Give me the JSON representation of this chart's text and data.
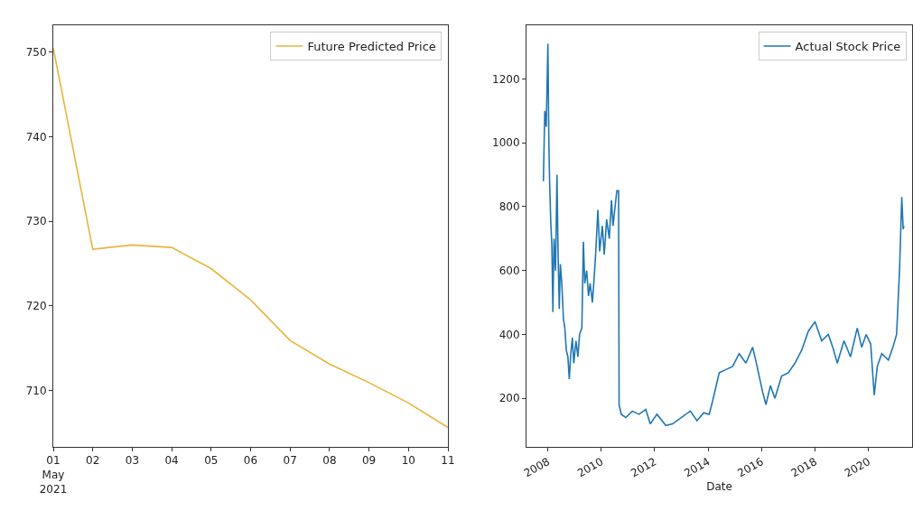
{
  "chart_data": [
    {
      "type": "line",
      "x": [
        "2021-05-01",
        "2021-05-02",
        "2021-05-03",
        "2021-05-04",
        "2021-05-05",
        "2021-05-06",
        "2021-05-07",
        "2021-05-08",
        "2021-05-09",
        "2021-05-10",
        "2021-05-11"
      ],
      "series": [
        {
          "name": "Future Predicted Price",
          "color": "#e8b53c",
          "values": [
            750.5,
            726.7,
            727.2,
            726.9,
            724.4,
            720.7,
            715.9,
            713.1,
            710.9,
            708.5,
            705.6
          ]
        }
      ],
      "xlim": [
        "2021-05-01",
        "2021-05-11"
      ],
      "xticks": [
        {
          "value": "2021-05-01",
          "label": "01\nMay\n2021"
        },
        {
          "value": "2021-05-02",
          "label": "02"
        },
        {
          "value": "2021-05-03",
          "label": "03"
        },
        {
          "value": "2021-05-04",
          "label": "04"
        },
        {
          "value": "2021-05-05",
          "label": "05"
        },
        {
          "value": "2021-05-06",
          "label": "06"
        },
        {
          "value": "2021-05-07",
          "label": "07"
        },
        {
          "value": "2021-05-08",
          "label": "08"
        },
        {
          "value": "2021-05-09",
          "label": "09"
        },
        {
          "value": "2021-05-10",
          "label": "10"
        },
        {
          "value": "2021-05-11",
          "label": "11"
        }
      ],
      "ylim": [
        703.3,
        753.2
      ],
      "yticks": [
        710,
        720,
        730,
        740,
        750
      ],
      "legend": "top right"
    },
    {
      "type": "line",
      "xlabel": "Date",
      "x": [
        "2007-11-01",
        "2007-11-20",
        "2007-12-10",
        "2008-01-02",
        "2008-01-15",
        "2008-01-25",
        "2008-02-10",
        "2008-02-25",
        "2008-03-10",
        "2008-03-25",
        "2008-04-15",
        "2008-05-05",
        "2008-05-20",
        "2008-06-05",
        "2008-06-20",
        "2008-07-10",
        "2008-08-01",
        "2008-08-20",
        "2008-09-10",
        "2008-10-01",
        "2008-10-20",
        "2008-11-10",
        "2008-12-01",
        "2008-12-20",
        "2009-01-20",
        "2009-02-15",
        "2009-03-10",
        "2009-04-10",
        "2009-05-01",
        "2009-05-20",
        "2009-06-15",
        "2009-07-10",
        "2009-08-01",
        "2009-09-01",
        "2009-09-20",
        "2009-10-15",
        "2009-11-15",
        "2009-12-10",
        "2010-01-15",
        "2010-02-10",
        "2010-03-15",
        "2010-04-20",
        "2010-05-20",
        "2010-06-10",
        "2010-08-01",
        "2010-08-25",
        "2010-09-01",
        "2010-10-01",
        "2010-12-01",
        "2011-03-01",
        "2011-06-01",
        "2011-09-01",
        "2011-11-01",
        "2012-02-01",
        "2012-06-01",
        "2012-09-01",
        "2013-01-01",
        "2013-05-01",
        "2013-08-01",
        "2013-11-01",
        "2014-01-15",
        "2014-03-01",
        "2014-06-01",
        "2014-09-01",
        "2014-12-01",
        "2015-03-01",
        "2015-06-01",
        "2015-09-01",
        "2015-11-01",
        "2016-01-15",
        "2016-03-01",
        "2016-05-01",
        "2016-07-01",
        "2016-10-01",
        "2017-01-01",
        "2017-04-01",
        "2017-07-01",
        "2017-10-01",
        "2018-01-01",
        "2018-04-01",
        "2018-07-01",
        "2018-09-01",
        "2018-11-01",
        "2019-02-01",
        "2019-05-01",
        "2019-08-01",
        "2019-10-01",
        "2019-12-01",
        "2020-02-01",
        "2020-03-20",
        "2020-05-01",
        "2020-07-01",
        "2020-10-01",
        "2020-12-01",
        "2021-01-20",
        "2021-03-01",
        "2021-04-01",
        "2021-04-20",
        "2021-04-30"
      ],
      "series": [
        {
          "name": "Actual Stock Price",
          "color": "#1f77b4",
          "values": [
            880,
            1100,
            1050,
            1310,
            1000,
            880,
            750,
            680,
            470,
            700,
            600,
            900,
            650,
            480,
            620,
            560,
            450,
            420,
            350,
            330,
            260,
            340,
            390,
            310,
            380,
            330,
            400,
            420,
            690,
            560,
            600,
            520,
            560,
            500,
            560,
            650,
            790,
            660,
            740,
            650,
            760,
            700,
            820,
            740,
            850,
            850,
            180,
            150,
            140,
            160,
            150,
            165,
            120,
            150,
            115,
            120,
            140,
            160,
            130,
            155,
            150,
            190,
            280,
            290,
            300,
            340,
            310,
            360,
            300,
            220,
            180,
            240,
            200,
            270,
            280,
            310,
            350,
            410,
            440,
            380,
            400,
            360,
            310,
            380,
            330,
            420,
            360,
            400,
            370,
            210,
            300,
            340,
            320,
            360,
            400,
            600,
            830,
            730,
            740
          ]
        }
      ],
      "xlim": [
        "2007-03-15",
        "2021-08-20"
      ],
      "xticks": [
        {
          "value": "2008-01-01",
          "label": "2008"
        },
        {
          "value": "2010-01-01",
          "label": "2010"
        },
        {
          "value": "2012-01-01",
          "label": "2012"
        },
        {
          "value": "2014-01-01",
          "label": "2014"
        },
        {
          "value": "2016-01-01",
          "label": "2016"
        },
        {
          "value": "2018-01-01",
          "label": "2018"
        },
        {
          "value": "2020-01-01",
          "label": "2020"
        }
      ],
      "ylim": [
        48,
        1368
      ],
      "yticks": [
        200,
        400,
        600,
        800,
        1000,
        1200
      ],
      "legend": "top right"
    }
  ]
}
